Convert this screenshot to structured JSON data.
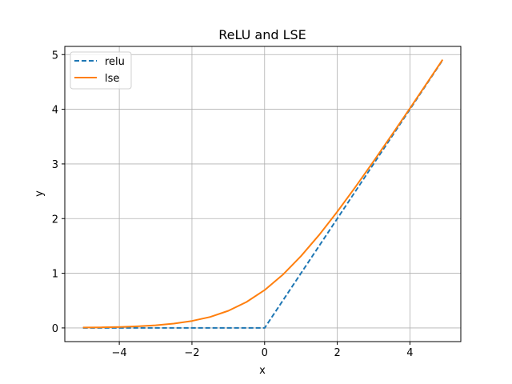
{
  "chart_data": {
    "type": "line",
    "title": "ReLU and LSE",
    "xlabel": "x",
    "ylabel": "y",
    "xlim": [
      -5.5,
      5.4
    ],
    "ylim": [
      -0.25,
      5.15
    ],
    "xticks": [
      -4,
      -2,
      0,
      2,
      4
    ],
    "yticks": [
      0,
      1,
      2,
      3,
      4,
      5
    ],
    "xtick_labels": [
      "−4",
      "−2",
      "0",
      "2",
      "4"
    ],
    "ytick_labels": [
      "0",
      "1",
      "2",
      "3",
      "4",
      "5"
    ],
    "grid": true,
    "legend_position": "top-left",
    "series": [
      {
        "name": "relu",
        "color": "#1f77b4",
        "dash": "dashed",
        "x": [
          -5.0,
          -4.0,
          -3.0,
          -2.0,
          -1.0,
          0.0,
          1.0,
          2.0,
          3.0,
          4.0,
          4.9
        ],
        "y": [
          0.0,
          0.0,
          0.0,
          0.0,
          0.0,
          0.0,
          1.0,
          2.0,
          3.0,
          4.0,
          4.9
        ]
      },
      {
        "name": "lse",
        "color": "#ff7f0e",
        "dash": "solid",
        "x": [
          -5.0,
          -4.5,
          -4.0,
          -3.5,
          -3.0,
          -2.5,
          -2.0,
          -1.5,
          -1.0,
          -0.5,
          0.0,
          0.5,
          1.0,
          1.5,
          2.0,
          2.5,
          3.0,
          3.5,
          4.0,
          4.5,
          4.9
        ],
        "y": [
          0.007,
          0.011,
          0.018,
          0.03,
          0.049,
          0.079,
          0.127,
          0.201,
          0.313,
          0.474,
          0.693,
          0.974,
          1.313,
          1.701,
          2.127,
          2.579,
          3.049,
          3.53,
          4.018,
          4.511,
          4.907
        ]
      }
    ]
  }
}
